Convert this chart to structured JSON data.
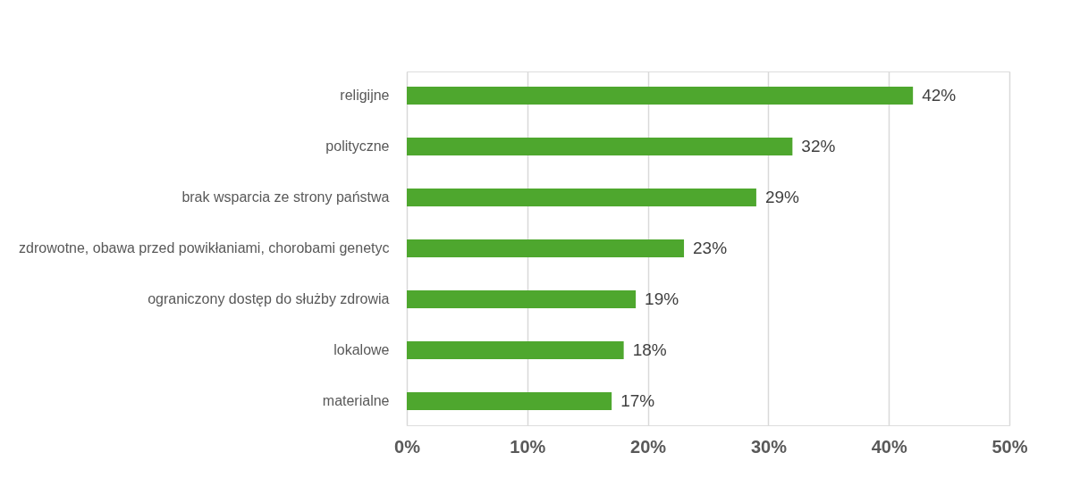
{
  "chart_data": {
    "type": "bar",
    "orientation": "horizontal",
    "categories": [
      "religijne",
      "polityczne",
      "brak wsparcia ze strony państwa",
      "zdrowotne, obawa przed powikłaniami, chorobami genetyc",
      "ograniczony dostęp do służby zdrowia",
      "lokalowe",
      "materialne"
    ],
    "values": [
      42,
      32,
      29,
      23,
      19,
      18,
      17
    ],
    "value_labels": [
      "42%",
      "32%",
      "29%",
      "23%",
      "19%",
      "18%",
      "17%"
    ],
    "color": "#4ea72e",
    "xlim": [
      0,
      50
    ],
    "xticks": [
      {
        "value": 0,
        "label": "0%"
      },
      {
        "value": 10,
        "label": "10%"
      },
      {
        "value": 20,
        "label": "20%"
      },
      {
        "value": 30,
        "label": "30%"
      },
      {
        "value": 40,
        "label": "40%"
      },
      {
        "value": 50,
        "label": "50%"
      }
    ],
    "grid": "x"
  }
}
